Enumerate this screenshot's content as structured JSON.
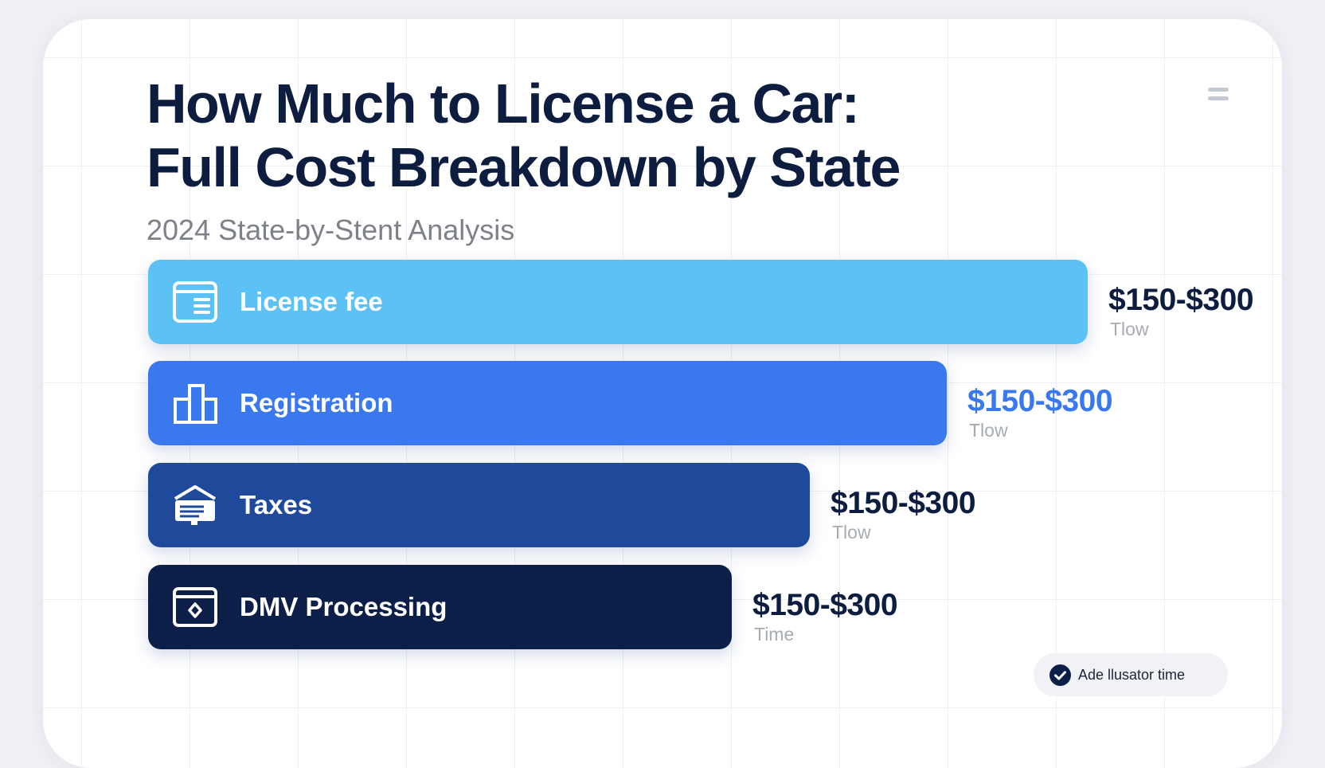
{
  "title_line1": "How Much to License a Car:",
  "title_line2": "Full Cost Breakdown by State",
  "subtitle": "2024 State-by-Stent Analysis",
  "menu_icon": "hamburger-menu-icon",
  "chart_data": {
    "type": "bar",
    "orientation": "horizontal",
    "categories": [
      "License fee",
      "Registration",
      "Taxes",
      "DMV Processing"
    ],
    "value_labels": [
      "$150-$300",
      "$150-$300",
      "$150-$300",
      "$150-$300"
    ],
    "sub_labels": [
      "Tlow",
      "Tlow",
      "Tlow",
      "Time"
    ],
    "relative_lengths": [
      1.0,
      0.85,
      0.7045,
      0.6213
    ],
    "colors": [
      "#5cc2f5",
      "#3a78ef",
      "#1f4a9c",
      "#0c1f49"
    ],
    "value_label_colors": [
      "#0c1d3f",
      "#3a78ef",
      "#0c1d3f",
      "#0c1d3f"
    ],
    "icons": [
      "browser-window-icon",
      "buildings-icon",
      "tax-document-icon",
      "dmv-window-icon"
    ]
  },
  "pill": {
    "label": "Ade llusator time",
    "icon": "check-circle-icon"
  }
}
